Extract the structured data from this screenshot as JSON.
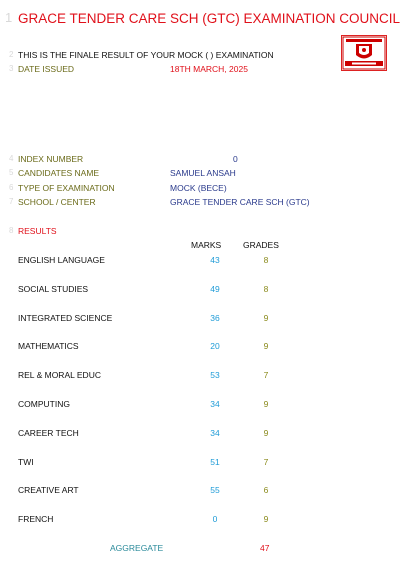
{
  "row_numbers": [
    "1",
    "2",
    "3",
    "4",
    "5",
    "6",
    "7",
    "8"
  ],
  "header": {
    "title": "GRACE TENDER CARE SCH (GTC) EXAMINATION COUNCIL",
    "notice": "THIS IS THE FINALE RESULT OF YOUR MOCK ( ) EXAMINATION",
    "date_label": "DATE ISSUED",
    "date_value": "18TH MARCH, 2025"
  },
  "candidate": {
    "index_label": "INDEX NUMBER",
    "index_value": "0",
    "name_label": "CANDIDATES NAME",
    "name_value": "SAMUEL ANSAH",
    "exam_label": "TYPE OF EXAMINATION",
    "exam_value": "MOCK (BECE)",
    "school_label": "SCHOOL / CENTER",
    "school_value": "GRACE TENDER CARE SCH (GTC)"
  },
  "results": {
    "heading": "RESULTS",
    "marks_header": "MARKS",
    "grades_header": "GRADES",
    "rows": [
      {
        "subject": "ENGLISH LANGUAGE",
        "marks": "43",
        "grade": "8"
      },
      {
        "subject": "SOCIAL STUDIES",
        "marks": "49",
        "grade": "8"
      },
      {
        "subject": "INTEGRATED SCIENCE",
        "marks": "36",
        "grade": "9"
      },
      {
        "subject": "MATHEMATICS",
        "marks": "20",
        "grade": "9"
      },
      {
        "subject": "REL & MORAL EDUC",
        "marks": "53",
        "grade": "7"
      },
      {
        "subject": "COMPUTING",
        "marks": "34",
        "grade": "9"
      },
      {
        "subject": "CAREER TECH",
        "marks": "34",
        "grade": "9"
      },
      {
        "subject": "TWI",
        "marks": "51",
        "grade": "7"
      },
      {
        "subject": "CREATIVE ART",
        "marks": "55",
        "grade": "6"
      },
      {
        "subject": "FRENCH",
        "marks": "0",
        "grade": "9"
      }
    ],
    "aggregate_label": "AGGREGATE",
    "aggregate_value": "47"
  },
  "colors": {
    "title": "#e0101a",
    "labels": "#6b6b1a",
    "values": "#2a3a8c",
    "marks": "#1e9bd7",
    "grades": "#8a8a1a"
  },
  "logo": {
    "icon": "school-crest-icon"
  }
}
